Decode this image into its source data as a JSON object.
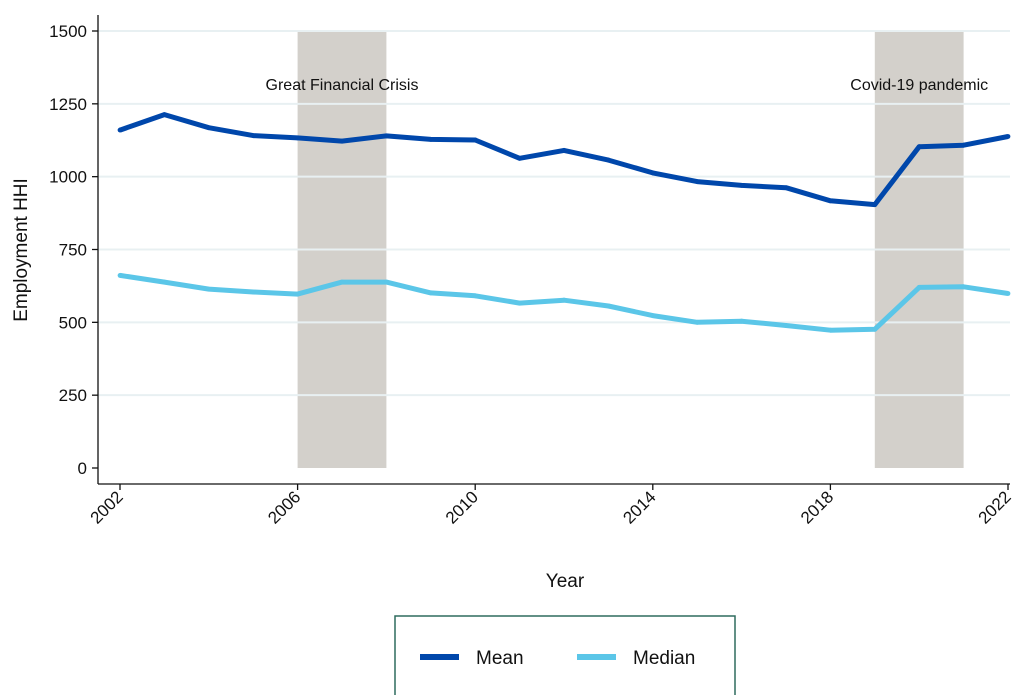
{
  "chart_data": {
    "type": "line",
    "title": "",
    "xlabel": "Year",
    "ylabel": "Employment HHI",
    "xlim": [
      2002,
      2022
    ],
    "ylim": [
      0,
      1500
    ],
    "x_ticks": [
      "2002",
      "2006",
      "2010",
      "2014",
      "2018",
      "2022"
    ],
    "y_ticks": [
      "0",
      "250",
      "500",
      "750",
      "1000",
      "1250",
      "1500"
    ],
    "grid": true,
    "legend_position": "bottom",
    "x": [
      2002,
      2003,
      2004,
      2005,
      2006,
      2007,
      2008,
      2009,
      2010,
      2011,
      2012,
      2013,
      2014,
      2015,
      2016,
      2017,
      2018,
      2019,
      2020,
      2021,
      2022
    ],
    "series": [
      {
        "name": "Mean",
        "color": "#0047AB",
        "values": [
          1160,
          1213,
          1168,
          1141,
          1133,
          1122,
          1140,
          1128,
          1126,
          1063,
          1090,
          1057,
          1013,
          983,
          970,
          962,
          917,
          904,
          1103,
          1108,
          1138
        ]
      },
      {
        "name": "Median",
        "color": "#5BC6E8",
        "values": [
          661,
          638,
          614,
          604,
          597,
          638,
          638,
          601,
          591,
          566,
          576,
          556,
          523,
          500,
          504,
          489,
          473,
          476,
          620,
          622,
          599
        ]
      }
    ],
    "shaded_periods": [
      {
        "label": "Great Financial Crisis",
        "start": 2006,
        "end": 2008
      },
      {
        "label": "Covid-19 pandemic",
        "start": 2019,
        "end": 2021
      }
    ],
    "colors": {
      "shade": "#D3D0CB",
      "grid": "#E8F0F2",
      "axis": "#111111",
      "legend_border": "#2F6B5E"
    }
  }
}
